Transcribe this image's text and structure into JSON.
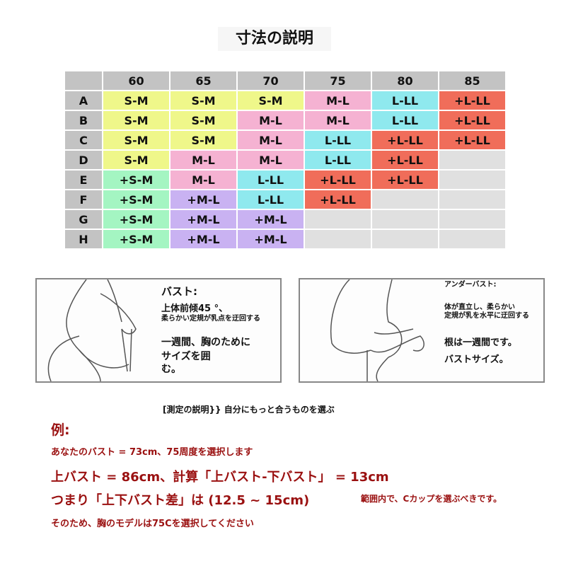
{
  "title": "寸法の説明",
  "colors": {
    "S-M": "#eff78a",
    "+S-M": "#a4f5c2",
    "M-L": "#f5b2d2",
    "+M-L": "#c9b2f2",
    "L-LL": "#8fe9ee",
    "+L-LL": "#f06d5a",
    "empty": "#e0e0e0"
  },
  "table": {
    "columns": [
      "60",
      "65",
      "70",
      "75",
      "80",
      "85"
    ],
    "rows": [
      {
        "label": "A",
        "cells": [
          "S-M",
          "S-M",
          "S-M",
          "M-L",
          "L-LL",
          "+L-LL"
        ]
      },
      {
        "label": "B",
        "cells": [
          "S-M",
          "S-M",
          "M-L",
          "M-L",
          "L-LL",
          "+L-LL"
        ]
      },
      {
        "label": "C",
        "cells": [
          "S-M",
          "S-M",
          "M-L",
          "L-LL",
          "+L-LL",
          "+L-LL"
        ]
      },
      {
        "label": "D",
        "cells": [
          "S-M",
          "M-L",
          "M-L",
          "L-LL",
          "+L-LL",
          ""
        ]
      },
      {
        "label": "E",
        "cells": [
          "+S-M",
          "M-L",
          "L-LL",
          "+L-LL",
          "+L-LL",
          ""
        ]
      },
      {
        "label": "F",
        "cells": [
          "+S-M",
          "+M-L",
          "L-LL",
          "+L-LL",
          "",
          ""
        ]
      },
      {
        "label": "G",
        "cells": [
          "+S-M",
          "+M-L",
          "+M-L",
          "",
          "",
          ""
        ]
      },
      {
        "label": "H",
        "cells": [
          "+S-M",
          "+M-L",
          "+M-L",
          "",
          "",
          ""
        ]
      }
    ]
  },
  "bust": {
    "heading": "バスト:",
    "line1": "上体前倾45 °、",
    "line2": "柔らかい定規が乳点を迂回する",
    "line3": "一週間、胸のために",
    "line4": "サイズを囲む。"
  },
  "underbust": {
    "heading": "アンダーバスト:",
    "line1": "体が直立し、柔らかい",
    "line2": "定規が乳を水平に迂回する",
    "line3": "根は一週間です。",
    "line4": "バストサイズ。"
  },
  "note": "[測定の説明}} 自分にもっと合うものを選ぶ",
  "example": {
    "label": "例:",
    "line1": "あなたのバスト = 73cm、75周度を選択します",
    "line2": "上バスト = 86cm、計算「上バスト-下バスト」 = 13cm",
    "line3": "つまり「上下バスト差」は (12.5 ~ 15cm)",
    "line3b": "範囲内で、Cカップを選ぶべきです。",
    "line4": "そのため、胸のモデルは75Cを選択してください"
  }
}
